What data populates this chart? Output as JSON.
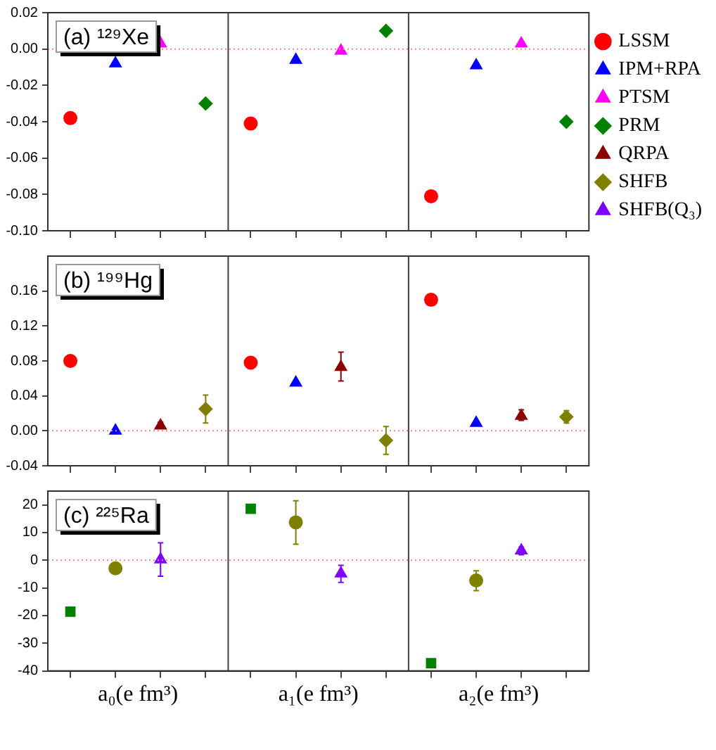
{
  "chart_data": [
    {
      "type": "scatter",
      "annotations": [
        "(a) ¹²⁹Xe"
      ],
      "categories": [
        null,
        null,
        null,
        null,
        null,
        null,
        null,
        null,
        null,
        null,
        null,
        null
      ],
      "ylim": [
        -0.1,
        0.02
      ],
      "yticks": [
        {
          "value": -0.1,
          "label": "-0.10"
        },
        {
          "value": -0.08,
          "label": "-0.08"
        },
        {
          "value": -0.06,
          "label": "-0.06"
        },
        {
          "value": -0.04,
          "label": "-0.04"
        },
        {
          "value": -0.02,
          "label": "-0.02"
        },
        {
          "value": 0,
          "label": "0.00"
        },
        {
          "value": 0.02,
          "label": "0.02"
        }
      ],
      "tick_labels": "y",
      "grid": false,
      "legend": "right",
      "ref_lines": [
        {
          "axis": "y",
          "value": 0,
          "color": "#ff8080",
          "line_style": "dotted"
        }
      ],
      "series": [
        {
          "name": "LSSM",
          "color": "#ff0000",
          "marker": "circle",
          "values": [
            -0.038,
            null,
            null,
            null,
            -0.041,
            null,
            null,
            null,
            -0.081,
            null,
            null,
            null
          ]
        },
        {
          "name": "IPM+RPA",
          "color": "#0000ff",
          "marker": "triangle",
          "values": [
            null,
            -0.008,
            null,
            null,
            null,
            -0.006,
            null,
            null,
            null,
            -0.009,
            null,
            null
          ]
        },
        {
          "name": "PTSM",
          "color": "#ff00ff",
          "marker": "triangle",
          "values": [
            null,
            null,
            0.003,
            null,
            null,
            null,
            -0.001,
            null,
            null,
            null,
            0.003,
            null
          ]
        },
        {
          "name": "PRM",
          "color": "#008000",
          "marker": "diamond",
          "values": [
            null,
            null,
            null,
            -0.03,
            null,
            null,
            null,
            0.01,
            null,
            null,
            null,
            -0.04
          ]
        },
        {
          "name": "QRPA",
          "color": "#8b0000",
          "marker": "triangle",
          "values": [
            null,
            null,
            null,
            null,
            null,
            null,
            null,
            null,
            null,
            null,
            null,
            null
          ]
        },
        {
          "name": "SHFB",
          "color": "#808000",
          "marker": "diamond",
          "values": [
            null,
            null,
            null,
            null,
            null,
            null,
            null,
            null,
            null,
            null,
            null,
            null
          ]
        },
        {
          "name": "SHFB(Q₃)",
          "color": "#8000ff",
          "marker": "triangle",
          "values": [
            null,
            null,
            null,
            null,
            null,
            null,
            null,
            null,
            null,
            null,
            null,
            null
          ]
        }
      ]
    },
    {
      "type": "scatter",
      "annotations": [
        "(b) ¹⁹⁹Hg"
      ],
      "categories": [
        null,
        null,
        null,
        null,
        null,
        null,
        null,
        null,
        null,
        null,
        null,
        null
      ],
      "ylim": [
        -0.04,
        0.2
      ],
      "yticks": [
        {
          "value": -0.04,
          "label": "-0.04"
        },
        {
          "value": 0,
          "label": "0.00"
        },
        {
          "value": 0.04,
          "label": "0.04"
        },
        {
          "value": 0.08,
          "label": "0.08"
        },
        {
          "value": 0.12,
          "label": "0.12"
        },
        {
          "value": 0.16,
          "label": "0.16"
        }
      ],
      "tick_labels": "y",
      "grid": false,
      "ref_lines": [
        {
          "axis": "y",
          "value": 0,
          "color": "#ff8080",
          "line_style": "dotted"
        }
      ],
      "series": [
        {
          "color": "#ff0000",
          "marker": "circle",
          "values": [
            0.08,
            null,
            null,
            null,
            0.078,
            null,
            null,
            null,
            0.15,
            null,
            null,
            null
          ]
        },
        {
          "color": "#0000ff",
          "marker": "triangle",
          "values": [
            null,
            0.0,
            null,
            null,
            null,
            0.055,
            null,
            null,
            null,
            0.009,
            null,
            null
          ]
        },
        {
          "color": "#8b0000",
          "marker": "triangle",
          "values": [
            null,
            null,
            0.006,
            null,
            null,
            null,
            0.073,
            null,
            null,
            null,
            0.017,
            null
          ],
          "errors": [
            null,
            null,
            [
              0.003,
              0.01
            ],
            null,
            null,
            null,
            [
              0.057,
              0.09
            ],
            null,
            null,
            null,
            [
              0.012,
              0.024
            ],
            null
          ]
        },
        {
          "color": "#808000",
          "marker": "diamond",
          "values": [
            null,
            null,
            null,
            0.025,
            null,
            null,
            null,
            -0.011,
            null,
            null,
            null,
            0.016
          ],
          "errors": [
            null,
            null,
            null,
            [
              0.009,
              0.041
            ],
            null,
            null,
            null,
            [
              -0.027,
              0.005
            ],
            null,
            null,
            null,
            [
              0.009,
              0.023
            ]
          ]
        }
      ]
    },
    {
      "type": "scatter",
      "annotations": [
        "(c) ²²⁵Ra",
        "a₀(e fm³)",
        "a₁(e fm³)",
        "a₂(e fm³)"
      ],
      "categories": [
        null,
        null,
        null,
        null,
        null,
        null,
        null,
        null,
        null,
        null,
        null,
        null
      ],
      "ylim": [
        -40,
        25
      ],
      "yticks": [
        -40,
        -30,
        -20,
        -10,
        0,
        10,
        20
      ],
      "grid": false,
      "ref_lines": [
        {
          "axis": "y",
          "value": 0,
          "color": "#ff8080",
          "line_style": "dotted"
        }
      ],
      "series": [
        {
          "color": "#008000",
          "marker": "square",
          "values": [
            -18.6,
            null,
            null,
            null,
            18.6,
            null,
            null,
            null,
            -37.2,
            null,
            null,
            null
          ]
        },
        {
          "color": "#808000",
          "marker": "circle",
          "values": [
            null,
            -2.9,
            null,
            null,
            null,
            13.7,
            null,
            null,
            null,
            -7.3,
            null,
            null
          ],
          "errors": [
            null,
            [
              -4.8,
              -1.2
            ],
            null,
            null,
            null,
            [
              5.8,
              21.5
            ],
            null,
            null,
            null,
            [
              -11,
              -3.8
            ],
            null,
            null
          ]
        },
        {
          "color": "#8000ff",
          "marker": "triangle",
          "values": [
            null,
            null,
            0.3,
            null,
            null,
            null,
            -4.8,
            null,
            null,
            null,
            3.5,
            null
          ],
          "errors": [
            null,
            null,
            [
              -5.8,
              6.3
            ],
            null,
            null,
            null,
            [
              -8,
              -1.8
            ],
            null,
            null,
            null,
            [
              2,
              4.7
            ],
            null
          ]
        }
      ]
    }
  ]
}
